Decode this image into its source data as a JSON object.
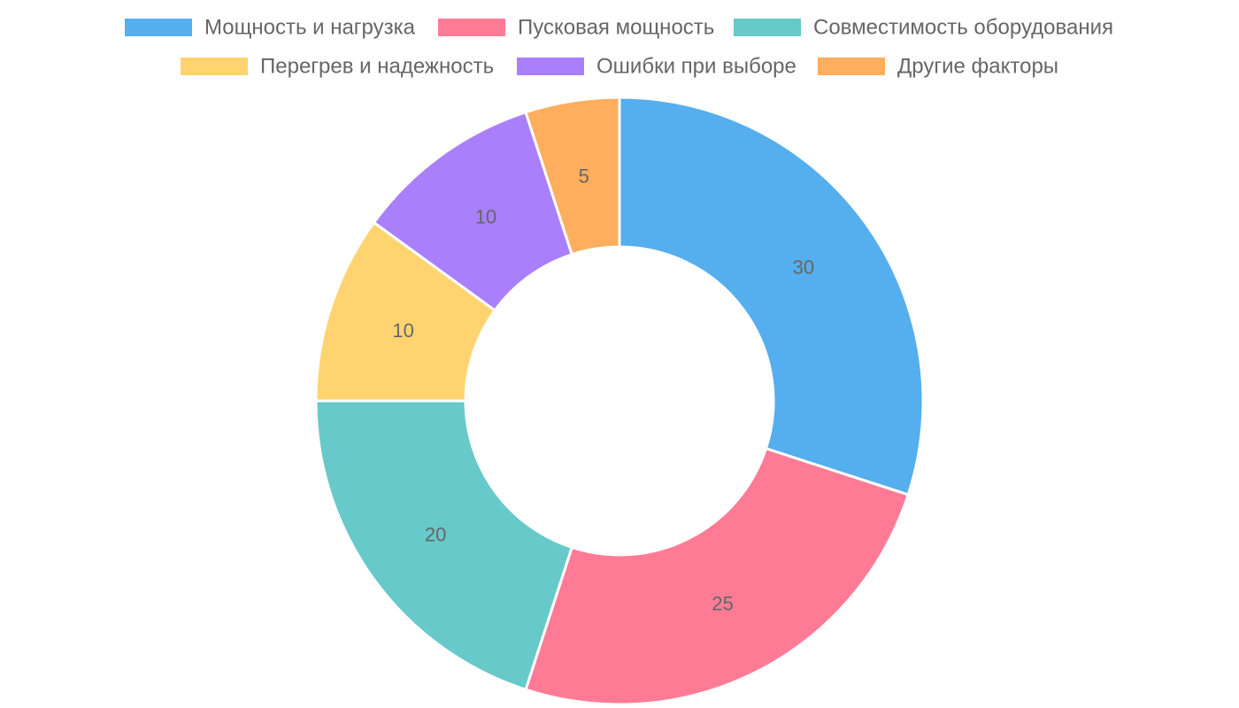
{
  "chart_data": {
    "type": "doughnut",
    "categories": [
      "Мощность и нагрузка",
      "Пусковая мощность",
      "Совместимость оборудования",
      "Перегрев и надежность",
      "Ошибки при выборе",
      "Другие факторы"
    ],
    "values": [
      30,
      25,
      20,
      10,
      10,
      5
    ],
    "value_labels": [
      "30",
      "25",
      "20",
      "10",
      "10",
      "5"
    ],
    "colors": [
      "#55aeee",
      "#ff7b95",
      "#67c9c9",
      "#ffd470",
      "#a97ffb",
      "#ffae5e"
    ],
    "legend_position": "top",
    "start_angle": "12 o'clock",
    "direction": "clockwise"
  }
}
